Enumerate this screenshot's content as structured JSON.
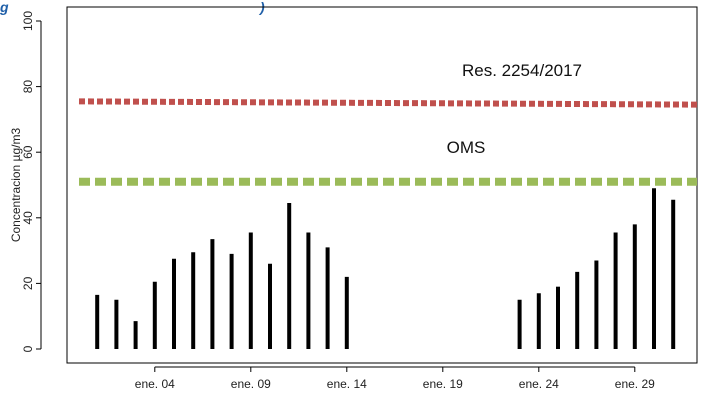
{
  "chart_data": {
    "type": "bar",
    "title_fragment": "g",
    "title_fragment_right": ")",
    "ylabel": "Concentracion µg/m3",
    "ylim": [
      0,
      100
    ],
    "yticks": [
      0,
      20,
      40,
      60,
      80,
      100
    ],
    "xlim": [
      0,
      32
    ],
    "xticks": [
      {
        "day": 4,
        "label": "ene. 04"
      },
      {
        "day": 9,
        "label": "ene. 09"
      },
      {
        "day": 14,
        "label": "ene. 14"
      },
      {
        "day": 19,
        "label": "ene. 19"
      },
      {
        "day": 24,
        "label": "ene. 24"
      },
      {
        "day": 29,
        "label": "ene. 29"
      }
    ],
    "points": [
      {
        "day": 1,
        "value": 16.5
      },
      {
        "day": 2,
        "value": 15
      },
      {
        "day": 3,
        "value": 8.5
      },
      {
        "day": 4,
        "value": 20.5
      },
      {
        "day": 5,
        "value": 27.5
      },
      {
        "day": 6,
        "value": 29.5
      },
      {
        "day": 7,
        "value": 33.5
      },
      {
        "day": 8,
        "value": 29
      },
      {
        "day": 9,
        "value": 35.5
      },
      {
        "day": 10,
        "value": 26
      },
      {
        "day": 11,
        "value": 44.5
      },
      {
        "day": 12,
        "value": 35.5
      },
      {
        "day": 13,
        "value": 31
      },
      {
        "day": 14,
        "value": 22
      },
      {
        "day": 23,
        "value": 15
      },
      {
        "day": 24,
        "value": 17
      },
      {
        "day": 25,
        "value": 19
      },
      {
        "day": 26,
        "value": 23.5
      },
      {
        "day": 27,
        "value": 27
      },
      {
        "day": 28,
        "value": 35.5
      },
      {
        "day": 29,
        "value": 38
      },
      {
        "day": 30,
        "value": 49
      },
      {
        "day": 31,
        "value": 45.5
      }
    ],
    "reference_lines": [
      {
        "label": "Res. 2254/2017",
        "start_value": 75.5,
        "end_value": 74.5,
        "color": "#c0504d"
      },
      {
        "label": "OMS",
        "start_value": 51,
        "end_value": 51,
        "color": "#9bbb59"
      }
    ]
  }
}
